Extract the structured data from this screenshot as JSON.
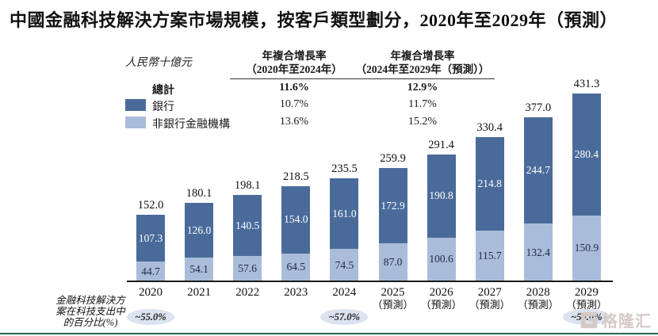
{
  "title": "中國金融科技解決方案市場規模，按客戶類型劃分，2020年至2029年（預測）",
  "unit_label": "人民幣十億元",
  "colors": {
    "bank": "#4a6b9a",
    "nonbank": "#a9bcd9",
    "bank_label_text": "#ffffff",
    "nonbank_label_text": "#1c2b45",
    "badge_bg": "#dbe3f0",
    "watermark": "#d5c9c6",
    "bottom_rule": "#2e6253"
  },
  "cagr_table": {
    "col1_header_line1": "年複合增長率",
    "col1_header_line2": "（2020年至2024年）",
    "col2_header_line1": "年複合增長率",
    "col2_header_line2": "（2024年至2029年（預測））",
    "rows": [
      {
        "label": "總計",
        "swatch": "",
        "col1": "11.6%",
        "col2": "12.9%",
        "bold": true
      },
      {
        "label": "銀行",
        "swatch": "#4a6b9a",
        "col1": "10.7%",
        "col2": "11.7%",
        "bold": false
      },
      {
        "label": "非銀行金融機構",
        "swatch": "#a9bcd9",
        "col1": "13.6%",
        "col2": "15.2%",
        "bold": false
      }
    ]
  },
  "chart_data": {
    "type": "bar",
    "stacked": true,
    "title": "中國金融科技解決方案市場規模，按客戶類型劃分，2020年至2029年（預測）",
    "ylabel": "人民幣十億元",
    "ylim": [
      0,
      450
    ],
    "grid": false,
    "legend_position": "top-left",
    "categories": [
      "2020",
      "2021",
      "2022",
      "2023",
      "2024",
      "2025",
      "2026",
      "2027",
      "2028",
      "2029"
    ],
    "category_sublabels": [
      "",
      "",
      "",
      "",
      "",
      "（預測）",
      "（預測）",
      "（預測）",
      "（預測）",
      "（預測）"
    ],
    "series": [
      {
        "name": "銀行",
        "color": "#4a6b9a",
        "values": [
          107.3,
          126.0,
          140.5,
          154.0,
          161.0,
          172.9,
          190.8,
          214.8,
          244.7,
          280.4
        ]
      },
      {
        "name": "非銀行金融機構",
        "color": "#a9bcd9",
        "values": [
          44.7,
          54.1,
          57.6,
          64.5,
          74.5,
          87.0,
          100.6,
          115.7,
          132.4,
          150.9
        ]
      }
    ],
    "totals": [
      152.0,
      180.1,
      198.1,
      218.5,
      235.5,
      259.9,
      291.4,
      330.4,
      377.0,
      431.3
    ]
  },
  "footnote": {
    "label_lines": [
      "金融科技解決方",
      "案在科技支出中",
      "的百分比(%)"
    ],
    "badges": [
      {
        "bar_index": 0,
        "text": "~55.0%"
      },
      {
        "bar_index": 4,
        "text": "~57.0%"
      },
      {
        "bar_index": 9,
        "text": "~59.0%"
      }
    ]
  },
  "watermark": {
    "text": "格隆汇"
  }
}
